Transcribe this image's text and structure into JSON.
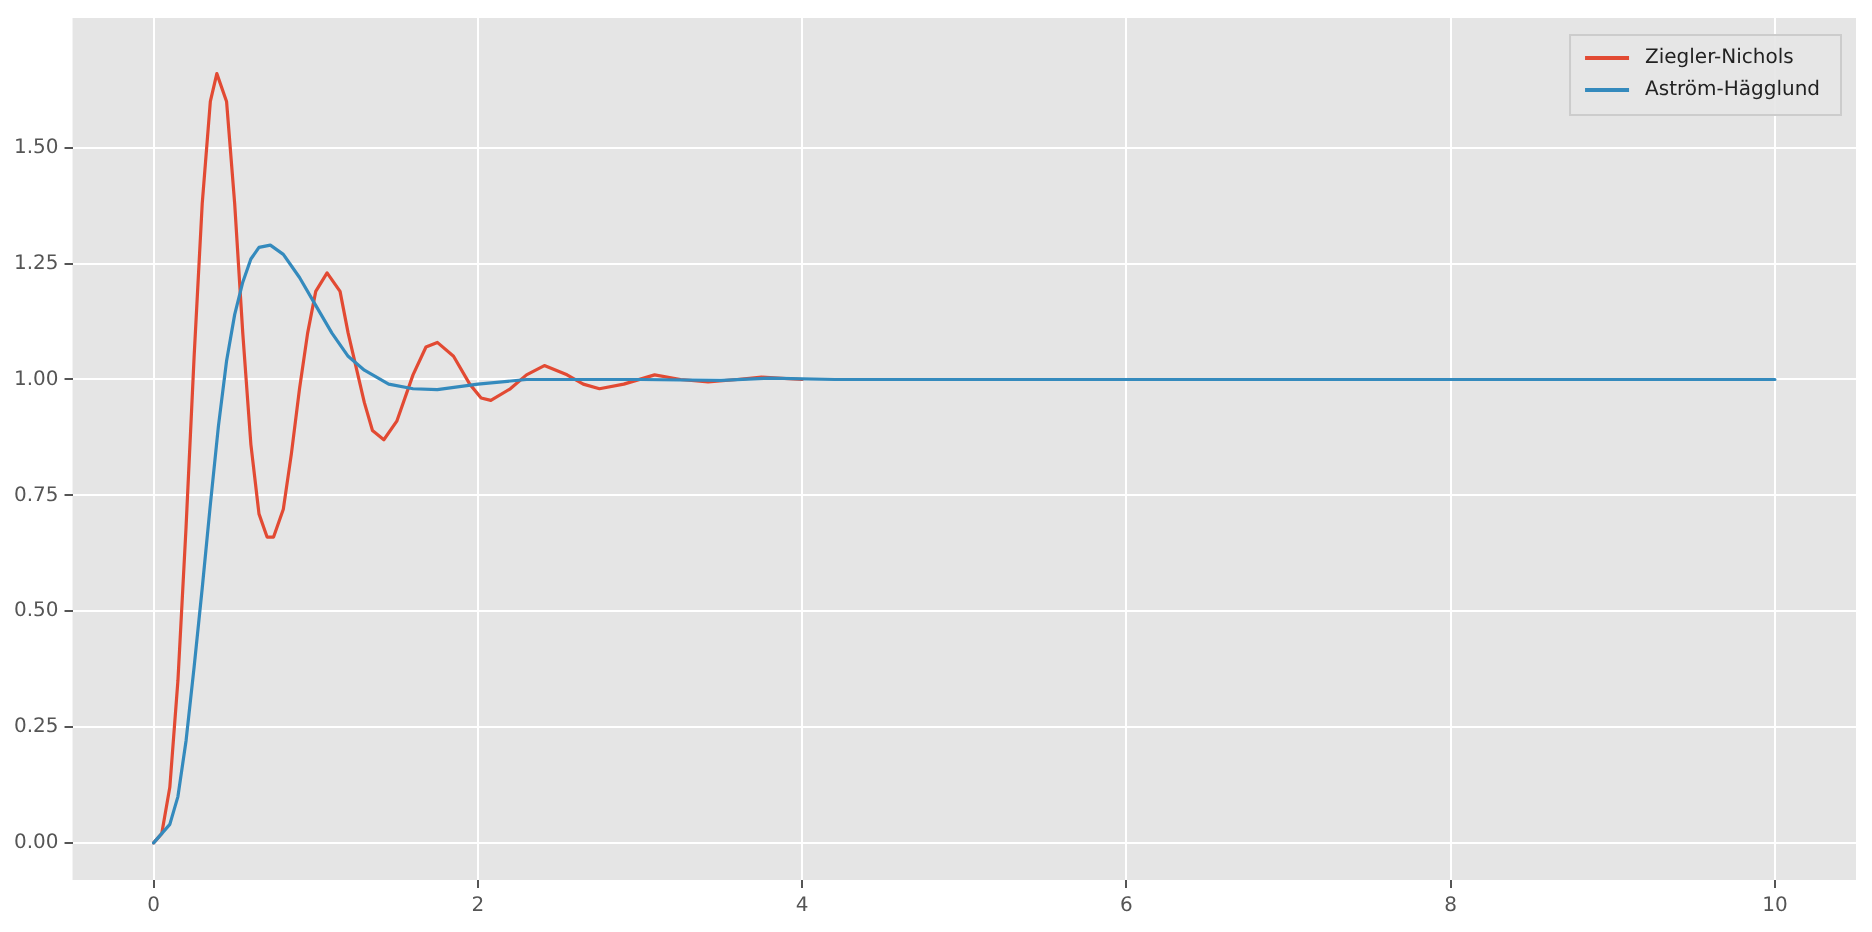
{
  "chart_data": {
    "type": "line",
    "legend": "top right",
    "grid": true,
    "marker": "none",
    "line_style": "solid",
    "xlim": [
      -0.5,
      10.5
    ],
    "ylim": [
      -0.08,
      1.78
    ],
    "xticks": [
      0,
      2,
      4,
      6,
      8,
      10
    ],
    "yticks": [
      {
        "value": 0,
        "label": "0.00"
      },
      {
        "value": 0.25,
        "label": "0.25"
      },
      {
        "value": 0.5,
        "label": "0.50"
      },
      {
        "value": 0.75,
        "label": "0.75"
      },
      {
        "value": 1,
        "label": "1.00"
      },
      {
        "value": 1.25,
        "label": "1.25"
      },
      {
        "value": 1.5,
        "label": "1.50"
      }
    ],
    "series": [
      {
        "name": "Ziegler-Nichols",
        "color": "#e24a33",
        "x": [
          0,
          0.05,
          0.1,
          0.15,
          0.2,
          0.25,
          0.3,
          0.35,
          0.39,
          0.45,
          0.5,
          0.55,
          0.6,
          0.65,
          0.7,
          0.74,
          0.8,
          0.85,
          0.9,
          0.95,
          1.0,
          1.07,
          1.15,
          1.2,
          1.3,
          1.35,
          1.42,
          1.5,
          1.6,
          1.68,
          1.75,
          1.85,
          1.95,
          2.02,
          2.08,
          2.2,
          2.3,
          2.41,
          2.55,
          2.65,
          2.75,
          2.9,
          3.09,
          3.25,
          3.42,
          3.6,
          3.75,
          4
        ],
        "values": [
          0,
          0.02,
          0.12,
          0.35,
          0.68,
          1.05,
          1.38,
          1.6,
          1.66,
          1.6,
          1.38,
          1.1,
          0.86,
          0.71,
          0.66,
          0.66,
          0.72,
          0.84,
          0.98,
          1.1,
          1.19,
          1.23,
          1.19,
          1.1,
          0.95,
          0.89,
          0.87,
          0.91,
          1.01,
          1.07,
          1.08,
          1.05,
          0.99,
          0.96,
          0.955,
          0.98,
          1.01,
          1.03,
          1.01,
          0.99,
          0.98,
          0.99,
          1.01,
          1.0,
          0.995,
          1.0,
          1.005,
          1.0
        ]
      },
      {
        "name": "Aström-Hägglund",
        "color": "#348abd",
        "x": [
          0,
          0.1,
          0.15,
          0.2,
          0.25,
          0.3,
          0.35,
          0.4,
          0.45,
          0.5,
          0.55,
          0.6,
          0.65,
          0.72,
          0.8,
          0.9,
          1.0,
          1.1,
          1.2,
          1.3,
          1.45,
          1.6,
          1.75,
          2.0,
          2.3,
          3,
          3.5,
          3.8,
          4.2,
          10
        ],
        "values": [
          0,
          0.04,
          0.1,
          0.22,
          0.38,
          0.55,
          0.73,
          0.9,
          1.04,
          1.14,
          1.21,
          1.26,
          1.285,
          1.29,
          1.27,
          1.22,
          1.16,
          1.1,
          1.05,
          1.02,
          0.99,
          0.98,
          0.978,
          0.99,
          1.0,
          1.0,
          0.998,
          1.003,
          1.0,
          1.0
        ]
      }
    ]
  }
}
